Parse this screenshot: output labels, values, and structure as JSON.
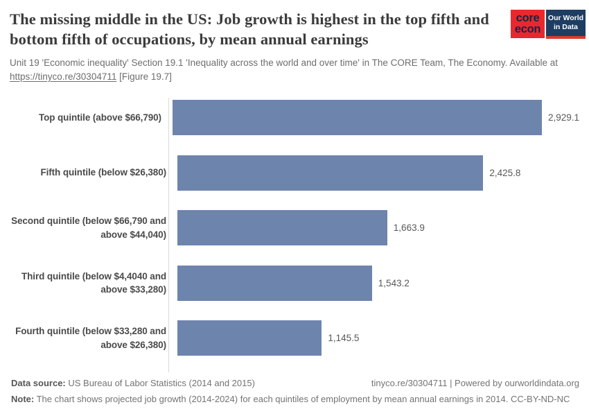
{
  "header": {
    "title": "The missing middle in the US: Job growth is highest in the top fifth and bottom fifth of occupations, by mean annual earnings",
    "subtitle_prefix": "Unit 19 'Economic inequality' Section 19.1 'Inequality across the world and over time' in The CORE Team, The Economy. Available at ",
    "subtitle_link": "https://tinyco.re/30304711",
    "subtitle_suffix": " [Figure 19.7]"
  },
  "logos": {
    "core_econ": {
      "line1": "core",
      "line2": "econ",
      "bg": "#e8282f",
      "fg": "#172545"
    },
    "owid": {
      "line1": "Our World",
      "line2": "in Data",
      "bg": "#1d3d63",
      "accent": "#d93b2b"
    }
  },
  "chart_data": {
    "type": "bar",
    "orientation": "horizontal",
    "categories": [
      "Top quintile (above $66,790)",
      "Fifth quintile (below $26,380)",
      "Second quintile (below $66,790 and\nabove $44,040)",
      "Third quintile (below $4,4040 and\nabove $33,280)",
      "Fourth quintile (below $33,280 and\nabove $26,380)"
    ],
    "values": [
      2929.1,
      2425.8,
      1663.9,
      1543.2,
      1145.5
    ],
    "value_labels": [
      "2,929.1",
      "2,425.8",
      "1,663.9",
      "1,543.2",
      "1,145.5"
    ],
    "bar_color": "#6d84ad",
    "axis_color": "#d9d9d9",
    "xlim": [
      0,
      2929.1
    ],
    "grid": false,
    "legend": false,
    "title": "The missing middle in the US: Job growth is highest in the top fifth and bottom fifth of occupations, by mean annual earnings",
    "xlabel": "",
    "ylabel": ""
  },
  "footer": {
    "data_source_label": "Data source:",
    "data_source_text": " US Bureau of Labor Statistics (2014 and 2015)",
    "right_text": "tinyco.re/30304711 | Powered by ourworldindata.org",
    "note_label": "Note:",
    "note_text": " The chart shows projected job growth (2014-2024) for each quintiles of employment by mean annual earnings in 2014. CC-BY-ND-NC"
  }
}
